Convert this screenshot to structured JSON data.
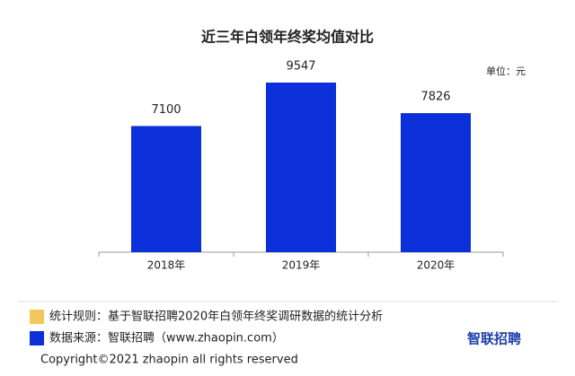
{
  "chart_data": {
    "type": "bar",
    "title": "近三年白领年终奖均值对比",
    "unit": "单位：元",
    "categories": [
      "2018年",
      "2019年",
      "2020年"
    ],
    "values": [
      7100,
      9547,
      7826
    ],
    "color": "#0b2fd8"
  },
  "notes": [
    {
      "text": "统计规则：基于智联招聘2020年白领年终奖调研数据的统计分析",
      "color": "#f2c75c"
    },
    {
      "text": "数据来源：智联招聘（www.zhaopin.com）",
      "color": "#0b2fd8"
    }
  ],
  "logo": "智联招聘",
  "copyright": "Copyright©2021 zhaopin all rights reserved"
}
